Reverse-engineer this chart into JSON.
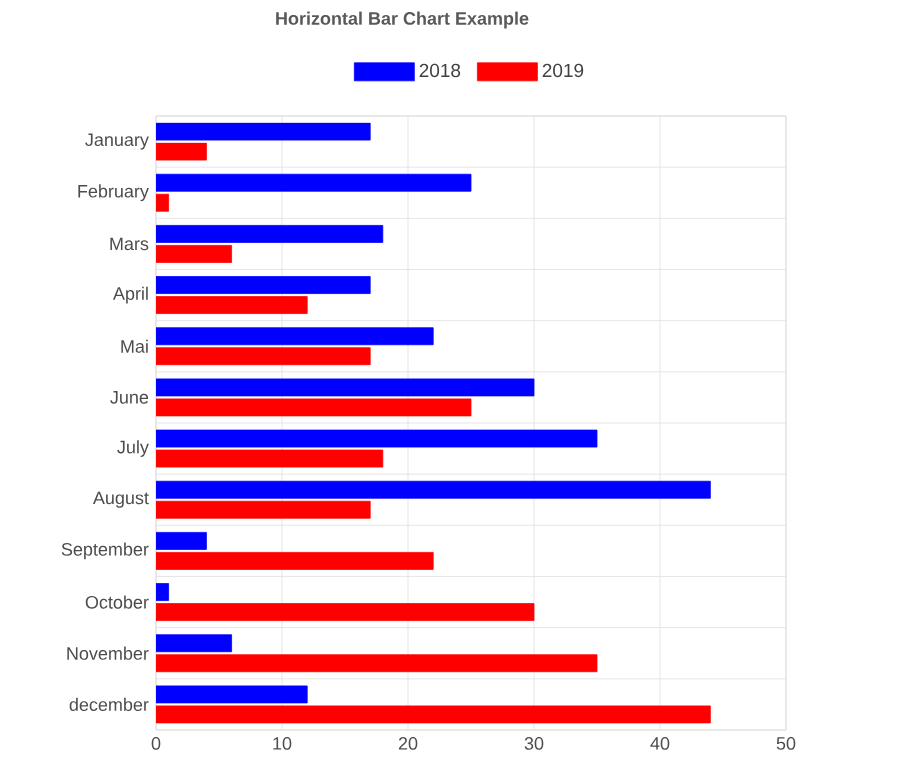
{
  "chart_data": {
    "type": "bar",
    "orientation": "horizontal",
    "title": "Horizontal Bar Chart Example",
    "categories": [
      "January",
      "February",
      "Mars",
      "April",
      "Mai",
      "June",
      "July",
      "August",
      "September",
      "October",
      "November",
      "december"
    ],
    "series": [
      {
        "name": "2018",
        "color": "#0000ff",
        "values": [
          17,
          25,
          18,
          17,
          22,
          30,
          35,
          44,
          4,
          1,
          6,
          12
        ]
      },
      {
        "name": "2019",
        "color": "#ff0000",
        "values": [
          4,
          1,
          6,
          12,
          17,
          25,
          18,
          17,
          22,
          30,
          35,
          44
        ]
      }
    ],
    "xlim": [
      0,
      50
    ],
    "xticks": [
      0,
      10,
      20,
      30,
      40,
      50
    ],
    "grid": true,
    "legend": "top"
  }
}
